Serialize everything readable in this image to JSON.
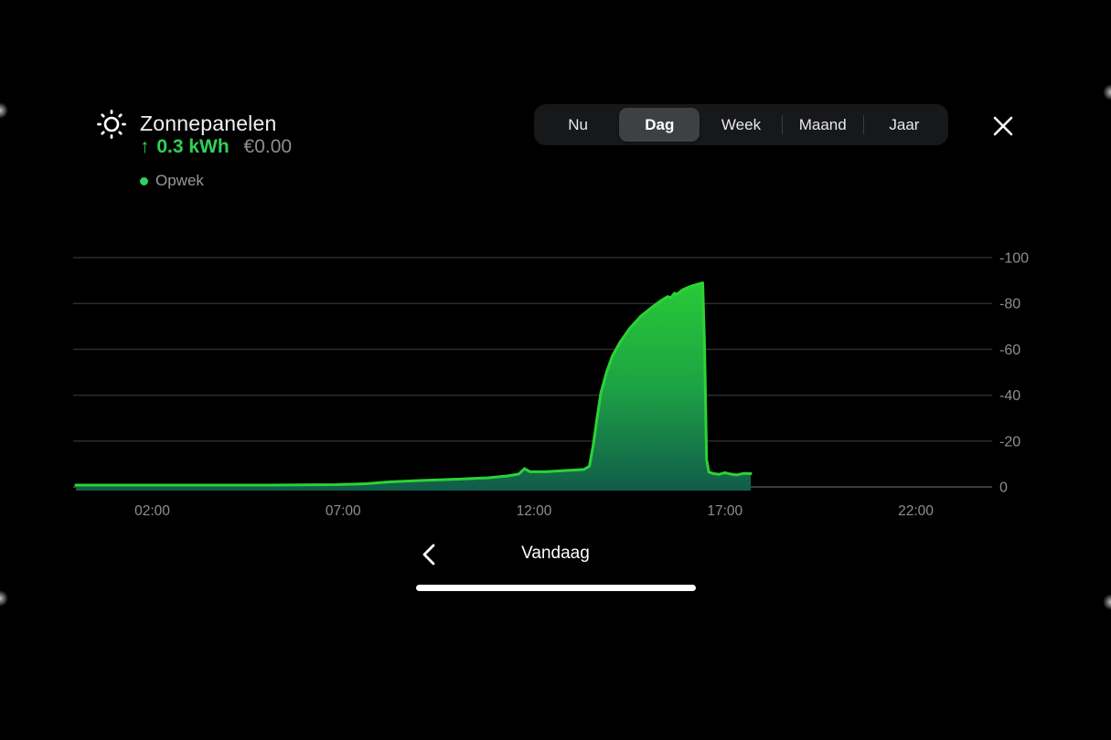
{
  "header": {
    "title": "Zonnepanelen",
    "arrow": "↑",
    "energy_value": "0.3 kWh",
    "cost_value": "€0.00",
    "legend_label": "Opwek"
  },
  "tabs": {
    "items": [
      "Nu",
      "Dag",
      "Week",
      "Maand",
      "Jaar"
    ],
    "selected": "Dag"
  },
  "footer": {
    "period_label": "Vandaag"
  },
  "colors": {
    "accent_text_green": "#30d158",
    "line_green": "#2bd334",
    "fill_top": "#2bd334",
    "fill_mid": "#1da344",
    "fill_bottom": "#115c4a",
    "grid": "#2c2c2e",
    "zero_line": "#505052",
    "axis_text": "#8e8e93",
    "tab_bg": "#17181a",
    "tab_selected_bg": "#3e4144"
  },
  "chart_data": {
    "type": "area",
    "title": "Zonnepanelen opwek — Dag (Vandaag)",
    "series_name": "Opwek",
    "x_unit": "hour_of_day",
    "x_range": [
      0,
      24
    ],
    "y_ticks": [
      -100,
      -80,
      -60,
      -40,
      -20,
      0
    ],
    "x_tick_hours": [
      2,
      7,
      12,
      17,
      22
    ],
    "x_tick_labels": [
      "02:00",
      "07:00",
      "12:00",
      "17:00",
      "22:00"
    ],
    "grid": true,
    "legend_position": "top-left",
    "series": [
      {
        "name": "Opwek",
        "points": [
          [
            0.0,
            -0.8
          ],
          [
            2.0,
            -0.8
          ],
          [
            5.0,
            -0.8
          ],
          [
            6.8,
            -1.0
          ],
          [
            7.6,
            -1.4
          ],
          [
            8.2,
            -2.2
          ],
          [
            9.0,
            -2.8
          ],
          [
            10.0,
            -3.4
          ],
          [
            10.8,
            -4.0
          ],
          [
            11.3,
            -4.8
          ],
          [
            11.6,
            -5.6
          ],
          [
            11.75,
            -8.0
          ],
          [
            11.9,
            -6.6
          ],
          [
            12.3,
            -6.6
          ],
          [
            12.9,
            -7.2
          ],
          [
            13.3,
            -7.6
          ],
          [
            13.45,
            -9.0
          ],
          [
            13.55,
            -18.0
          ],
          [
            13.65,
            -30.0
          ],
          [
            13.75,
            -41.0
          ],
          [
            13.9,
            -50.0
          ],
          [
            14.05,
            -57.0
          ],
          [
            14.25,
            -63.0
          ],
          [
            14.5,
            -69.0
          ],
          [
            14.8,
            -74.5
          ],
          [
            15.1,
            -78.5
          ],
          [
            15.35,
            -81.5
          ],
          [
            15.5,
            -83.0
          ],
          [
            15.58,
            -82.5
          ],
          [
            15.68,
            -84.5
          ],
          [
            15.74,
            -84.0
          ],
          [
            15.9,
            -86.0
          ],
          [
            16.1,
            -87.5
          ],
          [
            16.3,
            -88.5
          ],
          [
            16.42,
            -89.0
          ],
          [
            16.47,
            -60.0
          ],
          [
            16.52,
            -12.0
          ],
          [
            16.58,
            -6.5
          ],
          [
            16.7,
            -5.8
          ],
          [
            16.85,
            -5.5
          ],
          [
            17.0,
            -6.2
          ],
          [
            17.15,
            -5.6
          ],
          [
            17.3,
            -5.2
          ],
          [
            17.5,
            -5.9
          ],
          [
            17.68,
            -5.8
          ]
        ]
      }
    ]
  }
}
